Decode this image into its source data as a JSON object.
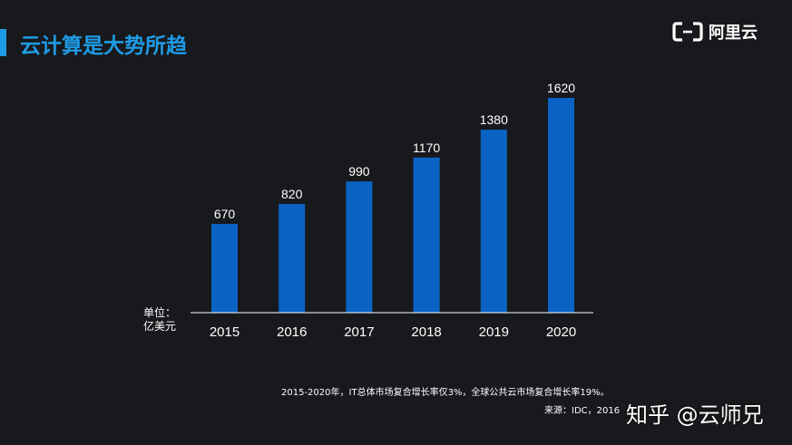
{
  "header": {
    "title": "云计算是大势所趋",
    "logo_text": "阿里云",
    "logo_icon": "aliyun-bracket-icon"
  },
  "colors": {
    "accent": "#1e9be6",
    "bar": "#0a63c4",
    "background": "#17191c"
  },
  "unit_label_line1": "单位：",
  "unit_label_line2": "亿美元",
  "note": "2015-2020年，IT总体市场复合增长率仅3%，全球公共云市场复合增长率19%。",
  "source": "来源：IDC，2016",
  "watermark": "知乎 @云师兄",
  "chart_data": {
    "type": "bar",
    "categories": [
      "2015",
      "2016",
      "2017",
      "2018",
      "2019",
      "2020"
    ],
    "values": [
      670,
      820,
      990,
      1170,
      1380,
      1620
    ],
    "ylim": [
      0,
      1620
    ],
    "grid": false,
    "legend": "none"
  }
}
